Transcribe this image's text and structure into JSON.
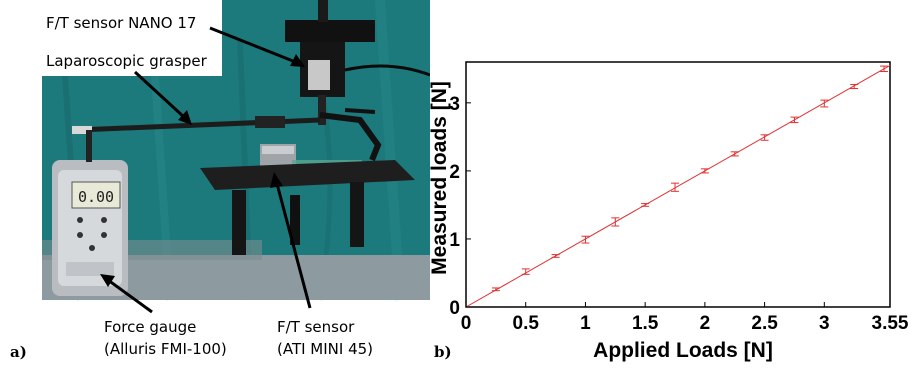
{
  "panel_a": {
    "letter": "a)",
    "labels": {
      "ft_sensor_nano": "F/T sensor NANO 17",
      "grasper": "Laparoscopic grasper",
      "force_gauge_line1": "Force gauge",
      "force_gauge_line2": "(Alluris FMI-100)",
      "ft_sensor_line1": "F/T sensor",
      "ft_sensor_line2": "(ATI MINI 45)"
    },
    "gauge_display": "0.00",
    "colors": {
      "backdrop": "#1f7f7f",
      "table_top": "#2a2a2a",
      "gauge_body": "#b8bcc0"
    }
  },
  "panel_b": {
    "letter": "b)"
  },
  "chart_data": {
    "type": "line",
    "xlabel": "Applied Loads [N]",
    "ylabel": "Measured loads [N]",
    "xlim": [
      0,
      3.55
    ],
    "ylim": [
      0,
      3.6
    ],
    "xticks": [
      "0",
      "0.5",
      "1",
      "1.5",
      "2",
      "2.5",
      "3",
      "3.55"
    ],
    "xtick_values": [
      0,
      0.5,
      1,
      1.5,
      2,
      2.5,
      3,
      3.55
    ],
    "yticks": [
      "0",
      "1",
      "2",
      "3"
    ],
    "ytick_values": [
      0,
      1,
      2,
      3
    ],
    "grid": false,
    "series": [
      {
        "x": [
          0.25,
          0.5,
          0.75,
          1.0,
          1.25,
          1.5,
          1.75,
          2.0,
          2.25,
          2.5,
          2.75,
          3.0,
          3.25,
          3.5
        ],
        "y": [
          0.26,
          0.52,
          0.75,
          0.99,
          1.25,
          1.5,
          1.76,
          2.0,
          2.25,
          2.49,
          2.75,
          2.99,
          3.24,
          3.5
        ],
        "err": [
          0.02,
          0.04,
          0.02,
          0.05,
          0.06,
          0.02,
          0.06,
          0.03,
          0.03,
          0.04,
          0.04,
          0.05,
          0.03,
          0.04
        ],
        "fit_line": [
          [
            0,
            0
          ],
          [
            3.55,
            3.55
          ]
        ]
      }
    ],
    "colors": {
      "series": "#e03030",
      "axis": "#000000"
    }
  }
}
